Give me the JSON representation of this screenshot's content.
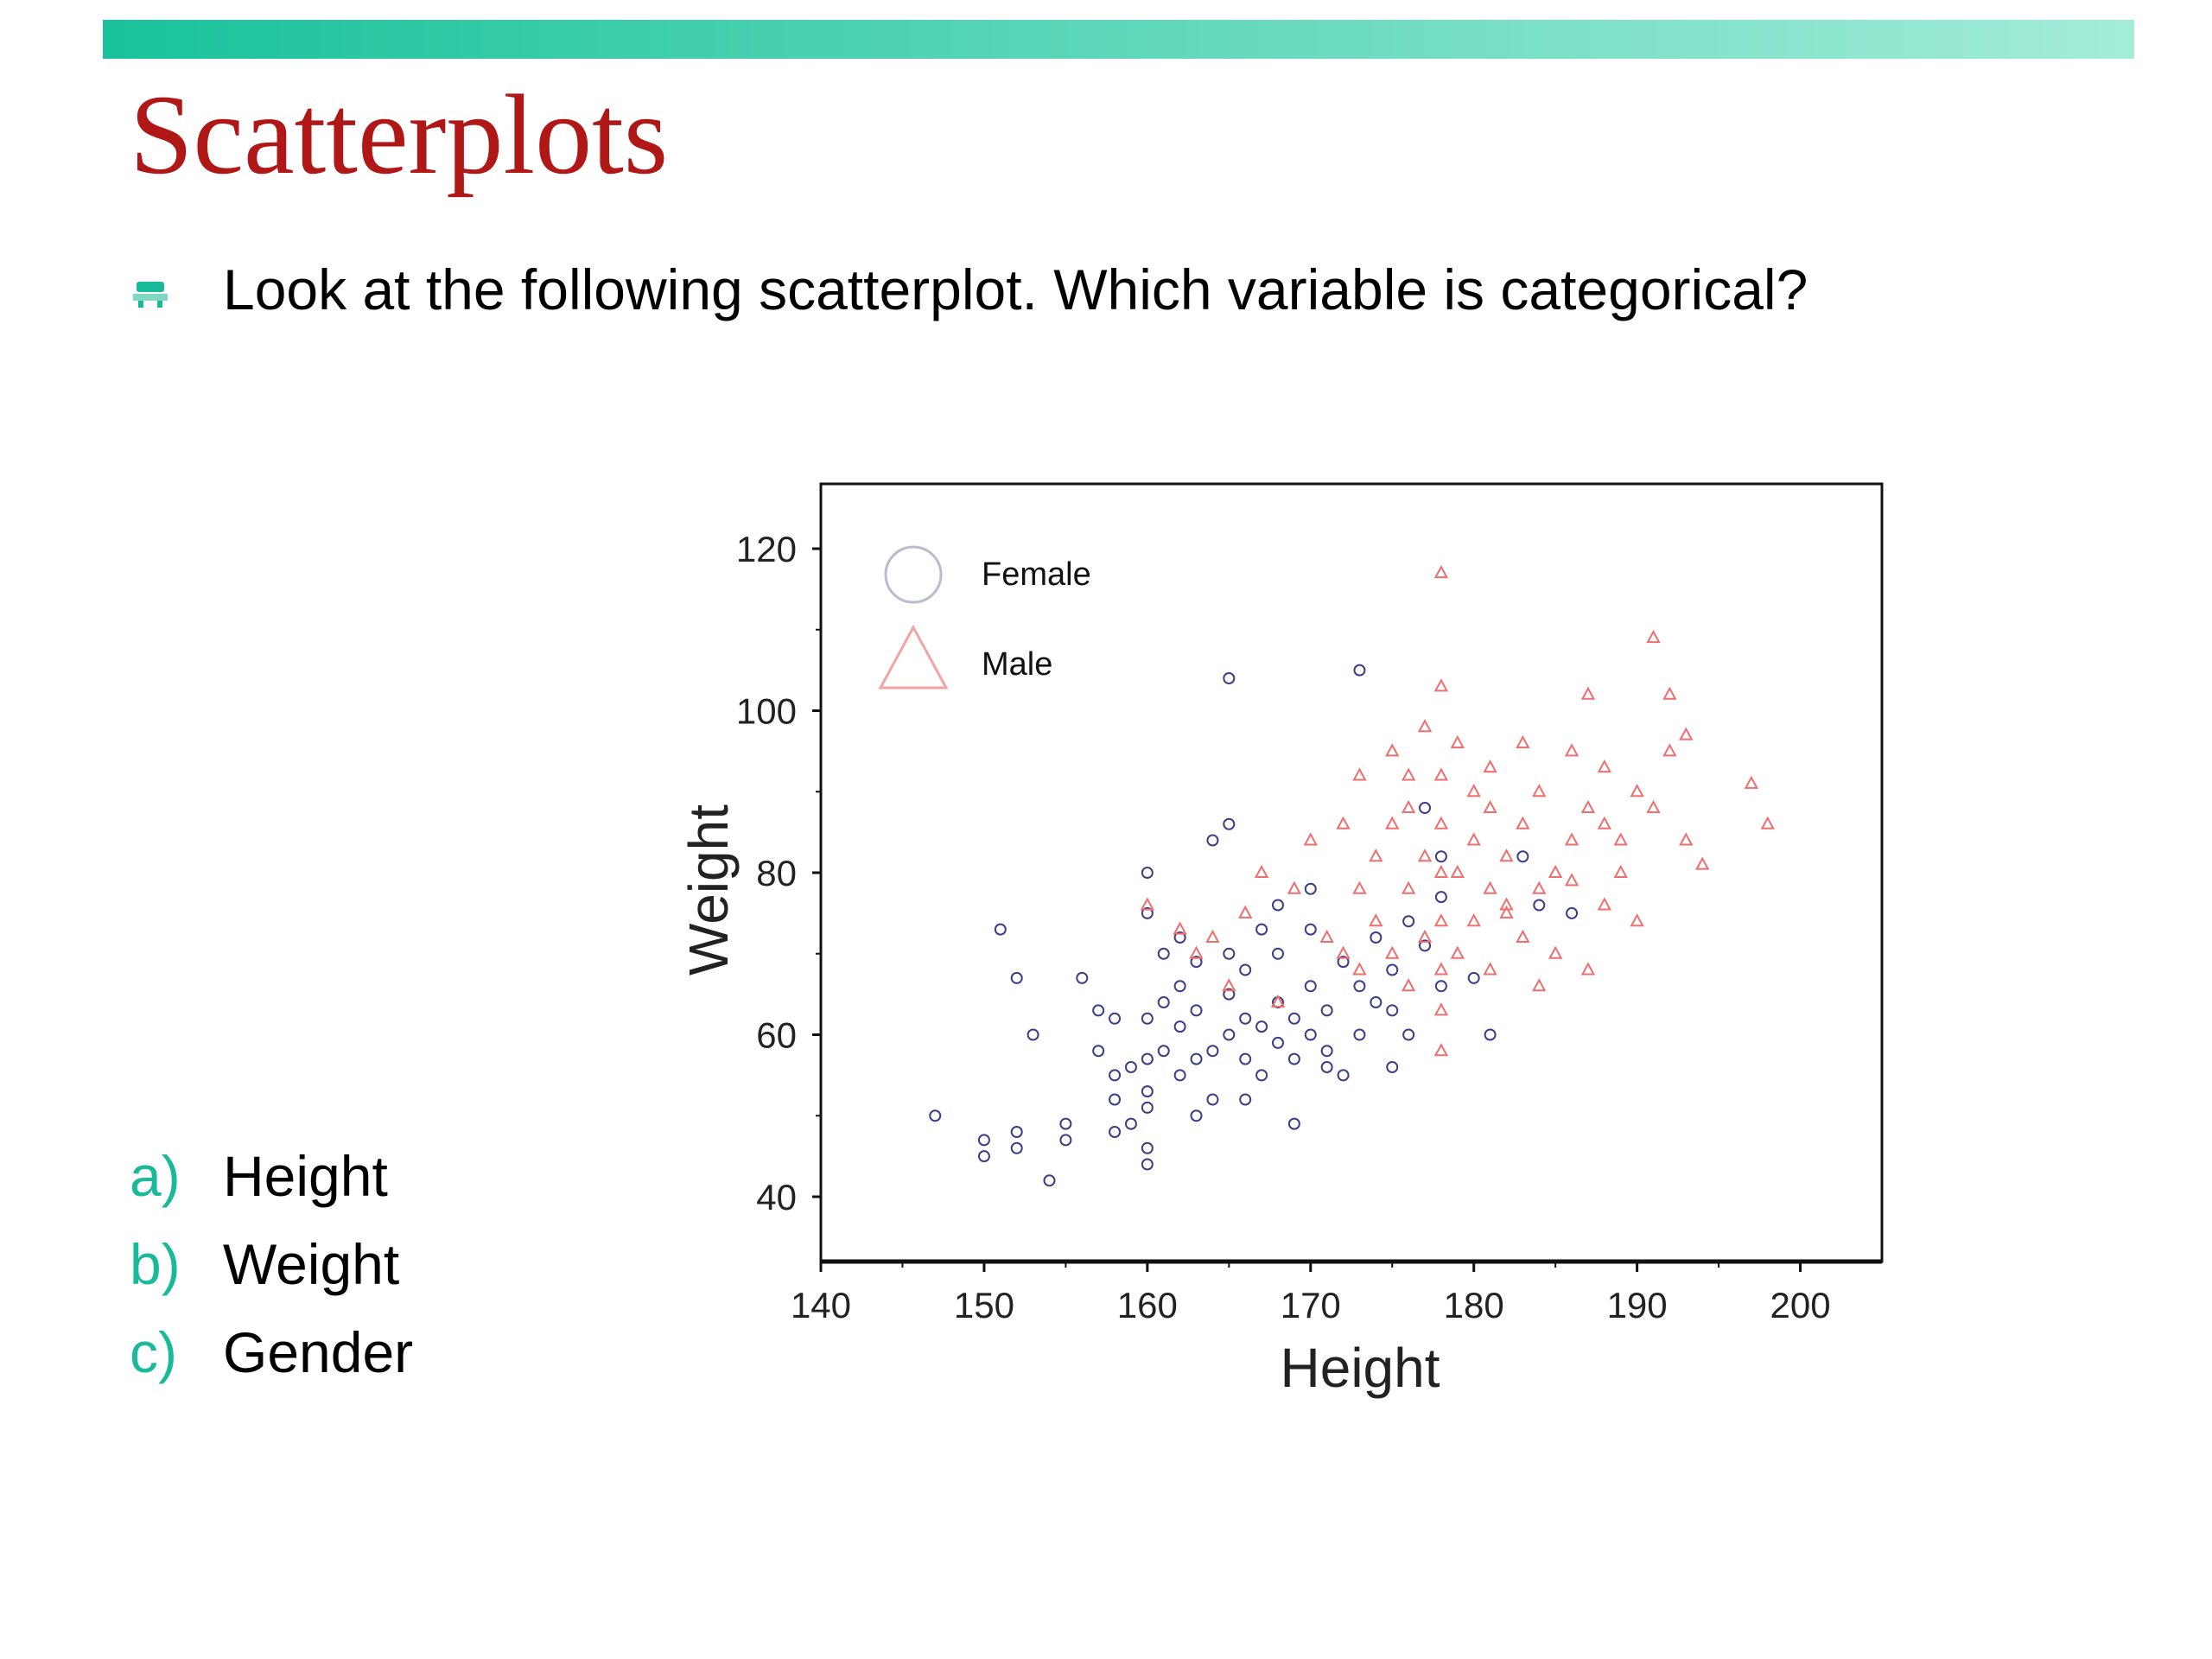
{
  "slide": {
    "title": "Scatterplots",
    "accent_color": "#19b99a",
    "title_color": "#b01818",
    "bullet": "Look at the following scatterplot.  Which variable is categorical?",
    "options": [
      {
        "letter": "a)",
        "text": "Height"
      },
      {
        "letter": "b)",
        "text": "Weight"
      },
      {
        "letter": "c)",
        "text": "Gender"
      }
    ]
  },
  "chart_data": {
    "type": "scatter",
    "title": "",
    "xlabel": "Height",
    "ylabel": "Weight",
    "xlim": [
      140,
      205
    ],
    "ylim": [
      32,
      128
    ],
    "xticks": [
      140,
      150,
      160,
      170,
      180,
      190,
      200
    ],
    "yticks": [
      40,
      60,
      80,
      100,
      120
    ],
    "grid": false,
    "legend_position": "top-left",
    "series": [
      {
        "name": "Female",
        "marker": "circle",
        "color": "#3b3f86",
        "points": [
          [
            147,
            50
          ],
          [
            150,
            45
          ],
          [
            150,
            47
          ],
          [
            151,
            73
          ],
          [
            152,
            48
          ],
          [
            152,
            46
          ],
          [
            152,
            67
          ],
          [
            153,
            60
          ],
          [
            154,
            42
          ],
          [
            155,
            49
          ],
          [
            155,
            47
          ],
          [
            156,
            67
          ],
          [
            157,
            63
          ],
          [
            157,
            58
          ],
          [
            158,
            62
          ],
          [
            158,
            55
          ],
          [
            158,
            48
          ],
          [
            159,
            56
          ],
          [
            159,
            49
          ],
          [
            160,
            51
          ],
          [
            160,
            46
          ],
          [
            160,
            44
          ],
          [
            160,
            53
          ],
          [
            160,
            57
          ],
          [
            160,
            62
          ],
          [
            160,
            75
          ],
          [
            160,
            80
          ],
          [
            161,
            58
          ],
          [
            161,
            64
          ],
          [
            161,
            70
          ],
          [
            162,
            55
          ],
          [
            162,
            61
          ],
          [
            162,
            66
          ],
          [
            162,
            72
          ],
          [
            163,
            57
          ],
          [
            163,
            63
          ],
          [
            163,
            69
          ],
          [
            164,
            58
          ],
          [
            164,
            52
          ],
          [
            164,
            84
          ],
          [
            165,
            86
          ],
          [
            165,
            104
          ],
          [
            165,
            60
          ],
          [
            165,
            65
          ],
          [
            165,
            70
          ],
          [
            166,
            57
          ],
          [
            166,
            62
          ],
          [
            166,
            68
          ],
          [
            167,
            55
          ],
          [
            167,
            61
          ],
          [
            167,
            73
          ],
          [
            168,
            59
          ],
          [
            168,
            64
          ],
          [
            168,
            70
          ],
          [
            168,
            76
          ],
          [
            169,
            57
          ],
          [
            169,
            62
          ],
          [
            169,
            49
          ],
          [
            170,
            60
          ],
          [
            170,
            66
          ],
          [
            170,
            73
          ],
          [
            170,
            78
          ],
          [
            171,
            63
          ],
          [
            171,
            58
          ],
          [
            172,
            55
          ],
          [
            172,
            69
          ],
          [
            173,
            60
          ],
          [
            173,
            66
          ],
          [
            173,
            105
          ],
          [
            174,
            72
          ],
          [
            174,
            64
          ],
          [
            175,
            56
          ],
          [
            175,
            63
          ],
          [
            175,
            68
          ],
          [
            176,
            60
          ],
          [
            176,
            74
          ],
          [
            177,
            71
          ],
          [
            177,
            88
          ],
          [
            178,
            77
          ],
          [
            178,
            66
          ],
          [
            178,
            82
          ],
          [
            180,
            67
          ],
          [
            181,
            60
          ],
          [
            183,
            82
          ],
          [
            184,
            76
          ],
          [
            186,
            75
          ],
          [
            158,
            52
          ],
          [
            163,
            50
          ],
          [
            166,
            52
          ],
          [
            171,
            56
          ]
        ]
      },
      {
        "name": "Male",
        "marker": "triangle",
        "color": "#ee6f6f",
        "points": [
          [
            160,
            76
          ],
          [
            162,
            73
          ],
          [
            163,
            70
          ],
          [
            164,
            72
          ],
          [
            165,
            66
          ],
          [
            166,
            75
          ],
          [
            167,
            80
          ],
          [
            168,
            64
          ],
          [
            169,
            78
          ],
          [
            170,
            84
          ],
          [
            171,
            72
          ],
          [
            172,
            70
          ],
          [
            172,
            86
          ],
          [
            173,
            68
          ],
          [
            173,
            78
          ],
          [
            173,
            92
          ],
          [
            174,
            74
          ],
          [
            174,
            82
          ],
          [
            175,
            70
          ],
          [
            175,
            86
          ],
          [
            175,
            95
          ],
          [
            176,
            66
          ],
          [
            176,
            78
          ],
          [
            176,
            88
          ],
          [
            177,
            72
          ],
          [
            177,
            82
          ],
          [
            177,
            98
          ],
          [
            178,
            58
          ],
          [
            178,
            63
          ],
          [
            178,
            68
          ],
          [
            178,
            74
          ],
          [
            178,
            80
          ],
          [
            178,
            86
          ],
          [
            178,
            92
          ],
          [
            178,
            103
          ],
          [
            178,
            117
          ],
          [
            179,
            70
          ],
          [
            179,
            80
          ],
          [
            180,
            74
          ],
          [
            180,
            84
          ],
          [
            180,
            90
          ],
          [
            181,
            68
          ],
          [
            181,
            78
          ],
          [
            181,
            88
          ],
          [
            181,
            93
          ],
          [
            182,
            75
          ],
          [
            182,
            82
          ],
          [
            183,
            72
          ],
          [
            183,
            86
          ],
          [
            183,
            96
          ],
          [
            184,
            78
          ],
          [
            184,
            90
          ],
          [
            185,
            70
          ],
          [
            185,
            80
          ],
          [
            186,
            84
          ],
          [
            186,
            95
          ],
          [
            187,
            68
          ],
          [
            187,
            88
          ],
          [
            187,
            102
          ],
          [
            188,
            76
          ],
          [
            188,
            86
          ],
          [
            188,
            93
          ],
          [
            189,
            80
          ],
          [
            189,
            84
          ],
          [
            190,
            74
          ],
          [
            190,
            90
          ],
          [
            191,
            88
          ],
          [
            191,
            109
          ],
          [
            192,
            95
          ],
          [
            192,
            102
          ],
          [
            193,
            84
          ],
          [
            193,
            97
          ],
          [
            194,
            81
          ],
          [
            197,
            91
          ],
          [
            198,
            86
          ],
          [
            179,
            96
          ],
          [
            182,
            76
          ],
          [
            176,
            92
          ],
          [
            184,
            66
          ],
          [
            186,
            79
          ]
        ]
      }
    ]
  }
}
